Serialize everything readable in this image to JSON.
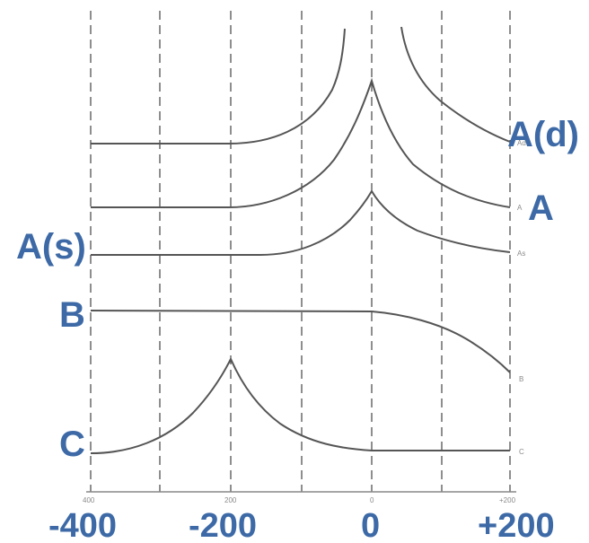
{
  "figure": {
    "curve_labels": {
      "ad": "A(d)",
      "a": "A",
      "as": "A(s)",
      "b": "B",
      "c": "C"
    },
    "small_axis_labels": [
      "400",
      "200",
      "0",
      "+200"
    ],
    "small_curve_labels": {
      "ad": "Ad",
      "a": "A",
      "as": "As",
      "b": "B",
      "c": "C"
    },
    "axis_ticks": [
      "-400",
      "-200",
      "0",
      "+200"
    ]
  }
}
